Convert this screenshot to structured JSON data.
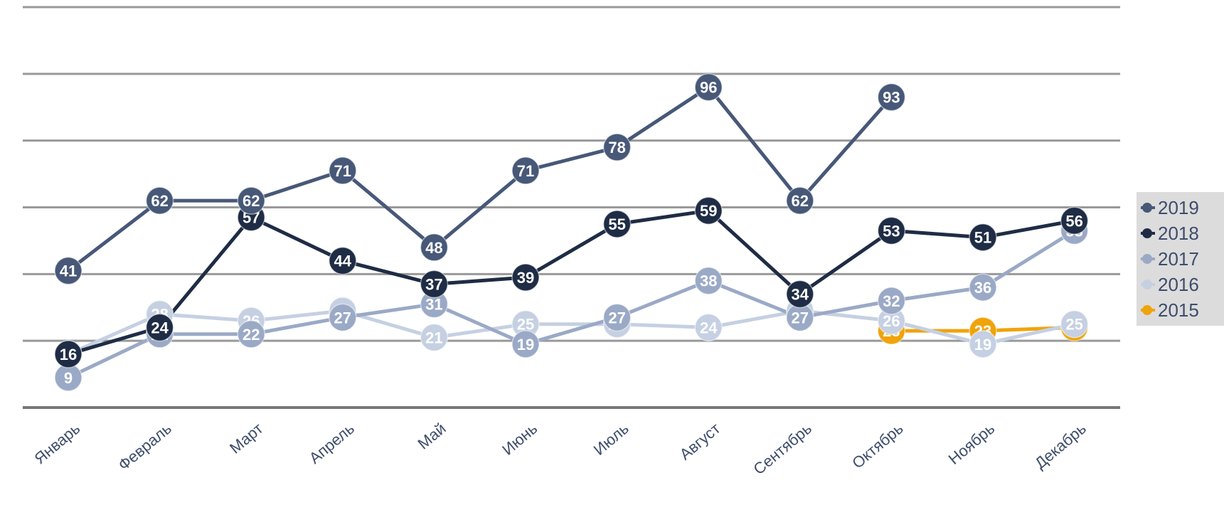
{
  "chart_data": {
    "type": "line",
    "title": "",
    "xlabel": "",
    "ylabel": "",
    "categories": [
      "Январь",
      "Февраль",
      "Март",
      "Апрель",
      "Май",
      "Июнь",
      "Июль",
      "Август",
      "Сентябрь",
      "Октябрь",
      "Ноябрь",
      "Декабрь"
    ],
    "ylim": [
      0,
      120
    ],
    "grid": true,
    "legend_position": "right",
    "series": [
      {
        "name": "2015",
        "color": "#f0a30a",
        "values": [
          null,
          null,
          null,
          null,
          null,
          null,
          null,
          null,
          null,
          23,
          23,
          24
        ]
      },
      {
        "name": "2016",
        "color": "#c5d0e2",
        "values": [
          16,
          28,
          26,
          29,
          21,
          25,
          25,
          24,
          29,
          26,
          19,
          25
        ]
      },
      {
        "name": "2017",
        "color": "#9aa9c6",
        "values": [
          9,
          22,
          22,
          27,
          31,
          19,
          27,
          38,
          27,
          32,
          36,
          53
        ]
      },
      {
        "name": "2018",
        "color": "#1f2c45",
        "values": [
          16,
          24,
          57,
          44,
          37,
          39,
          55,
          59,
          34,
          53,
          51,
          56
        ]
      },
      {
        "name": "2019",
        "color": "#475878",
        "values": [
          41,
          62,
          62,
          71,
          48,
          71,
          78,
          96,
          62,
          93,
          null,
          null
        ]
      }
    ],
    "legend": [
      "2019",
      "2018",
      "2017",
      "2016",
      "2015"
    ]
  }
}
